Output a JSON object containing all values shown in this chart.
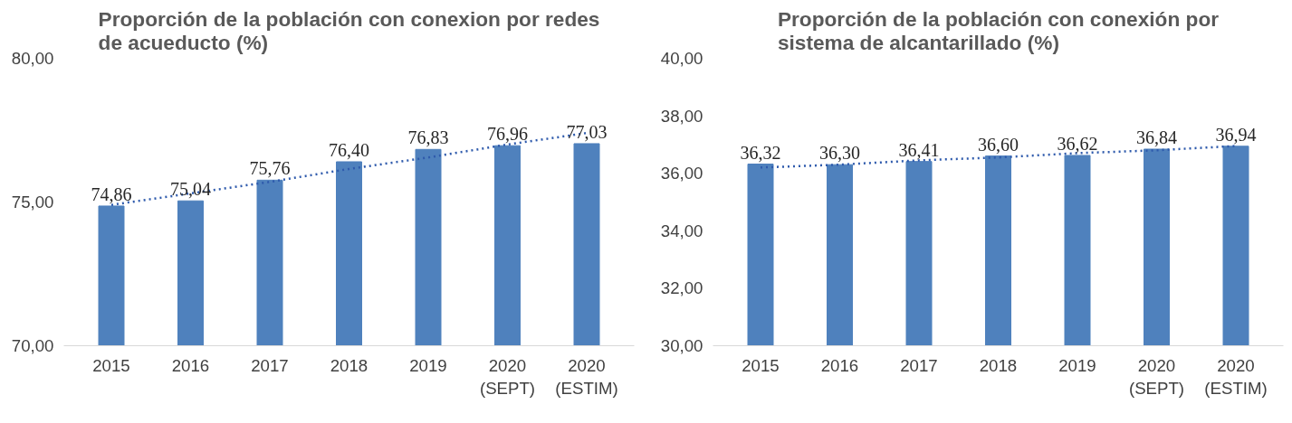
{
  "chart_data": [
    {
      "type": "bar",
      "title": "Proporción de la población con conexion por redes\nde acueducto (%)",
      "categories": [
        "2015",
        "2016",
        "2017",
        "2018",
        "2019",
        "2020 (SEPT)",
        "2020 (ESTIM)"
      ],
      "series": [
        {
          "color": "#4f81bd",
          "values": [
            74.86,
            75.04,
            75.76,
            76.4,
            76.83,
            76.96,
            77.03
          ],
          "value_labels": [
            "74,86",
            "75,04",
            "75,76",
            "76,40",
            "76,83",
            "76,96",
            "77,03"
          ]
        },
        {
          "type": "line",
          "color": "#2e5aac",
          "line_style": "dotted",
          "values": [
            74.9,
            75.3,
            75.7,
            76.15,
            76.55,
            77.0,
            77.4
          ]
        }
      ],
      "ylim": [
        70,
        80
      ],
      "yticks": [
        {
          "value": 70,
          "label": "70,00"
        },
        {
          "value": 75,
          "label": "75,00"
        },
        {
          "value": 80,
          "label": "80,00"
        }
      ],
      "grid": false
    },
    {
      "type": "bar",
      "title": "Proporción de la población con conexión por\nsistema de alcantarillado (%)",
      "categories": [
        "2015",
        "2016",
        "2017",
        "2018",
        "2019",
        "2020 (SEPT)",
        "2020 (ESTIM)"
      ],
      "series": [
        {
          "color": "#4f81bd",
          "values": [
            36.32,
            36.3,
            36.41,
            36.6,
            36.62,
            36.84,
            36.94
          ],
          "value_labels": [
            "36,32",
            "36,30",
            "36,41",
            "36,60",
            "36,62",
            "36,84",
            "36,94"
          ]
        },
        {
          "type": "line",
          "color": "#2e5aac",
          "line_style": "dotted",
          "values": [
            36.2,
            36.3,
            36.45,
            36.55,
            36.7,
            36.8,
            36.95
          ]
        }
      ],
      "ylim": [
        30,
        40
      ],
      "yticks": [
        {
          "value": 30,
          "label": "30,00"
        },
        {
          "value": 32,
          "label": "32,00"
        },
        {
          "value": 34,
          "label": "34,00"
        },
        {
          "value": 36,
          "label": "36,00"
        },
        {
          "value": 38,
          "label": "38,00"
        },
        {
          "value": 40,
          "label": "40,00"
        }
      ],
      "grid": false
    }
  ]
}
